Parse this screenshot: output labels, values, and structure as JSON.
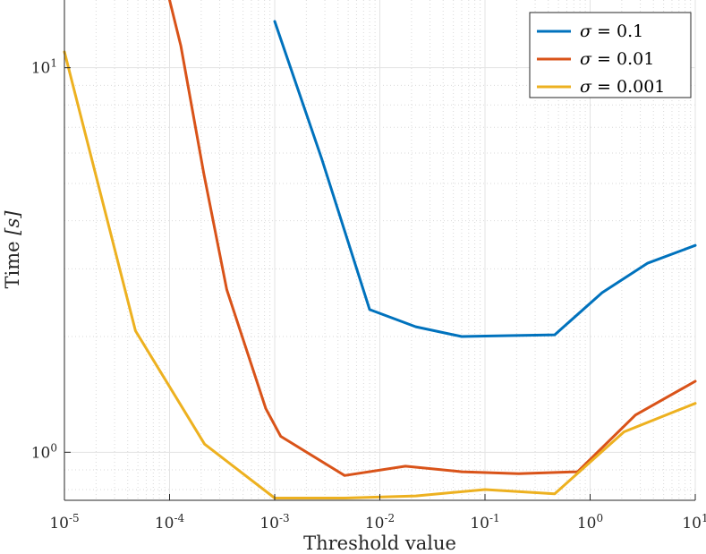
{
  "chart_data": {
    "type": "line",
    "xscale": "log",
    "yscale": "log",
    "xlim": [
      1e-05,
      10
    ],
    "ylim": [
      0.75,
      15
    ],
    "grid": true,
    "minor_grid": true,
    "legend_position": "top-right",
    "xlabel": "Threshold value",
    "ylabel_text": "Time ",
    "ylabel_unit": "[s]",
    "x_ticks": [
      {
        "value": 1e-05,
        "base": "10",
        "exp": "-5"
      },
      {
        "value": 0.0001,
        "base": "10",
        "exp": "-4"
      },
      {
        "value": 0.001,
        "base": "10",
        "exp": "-3"
      },
      {
        "value": 0.01,
        "base": "10",
        "exp": "-2"
      },
      {
        "value": 0.1,
        "base": "10",
        "exp": "-1"
      },
      {
        "value": 1,
        "base": "10",
        "exp": "0"
      },
      {
        "value": 10,
        "base": "10",
        "exp": "1"
      }
    ],
    "y_ticks": [
      {
        "value": 1,
        "base": "10",
        "exp": "0"
      },
      {
        "value": 10,
        "base": "10",
        "exp": "1"
      }
    ],
    "series": [
      {
        "name": "σ = 0.1",
        "legend_symbol": "σ",
        "legend_value": " = 0.1",
        "color": "#0072BD",
        "x": [
          0.001,
          0.0028,
          0.008,
          0.022,
          0.06,
          0.17,
          0.46,
          1.3,
          3.5,
          10
        ],
        "y": [
          13.2,
          5.8,
          2.35,
          2.12,
          2.0,
          2.01,
          2.02,
          2.6,
          3.1,
          3.45
        ]
      },
      {
        "name": "σ = 0.01",
        "legend_symbol": "σ",
        "legend_value": " = 0.01",
        "color": "#D95319",
        "x": [
          0.0001,
          0.000128,
          0.000212,
          0.00035,
          0.000822,
          0.00114,
          0.00462,
          0.0175,
          0.0602,
          0.209,
          0.76,
          2.7,
          10
        ],
        "y": [
          15.0,
          11.4,
          5.3,
          2.65,
          1.3,
          1.1,
          0.87,
          0.92,
          0.89,
          0.88,
          0.89,
          1.25,
          1.53
        ]
      },
      {
        "name": "σ = 0.001",
        "legend_symbol": "σ",
        "legend_value": " = 0.001",
        "color": "#EDB120",
        "x": [
          1e-05,
          4.74e-05,
          0.000215,
          0.001,
          0.00463,
          0.022,
          0.1,
          0.46,
          2.1,
          10
        ],
        "y": [
          11.0,
          2.07,
          1.05,
          0.76,
          0.76,
          0.77,
          0.8,
          0.78,
          1.13,
          1.34
        ]
      }
    ]
  }
}
